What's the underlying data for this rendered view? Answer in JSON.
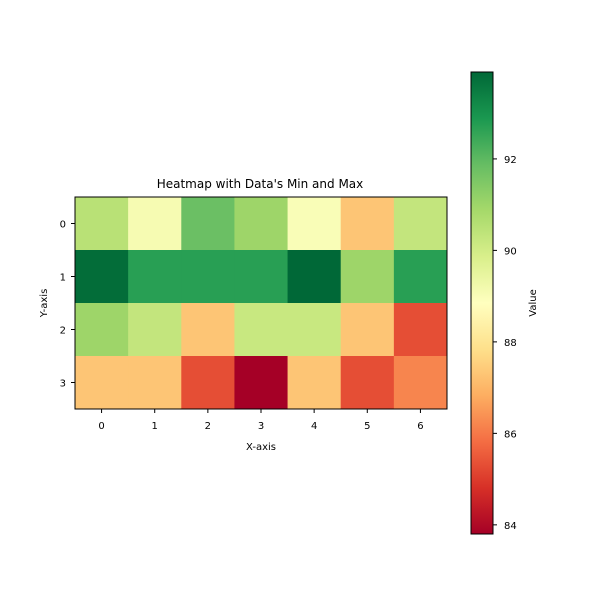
{
  "chart_data": {
    "type": "heatmap",
    "title": "Heatmap with Data's Min and Max",
    "xlabel": "X-axis",
    "ylabel": "Y-axis",
    "x_categories": [
      "0",
      "1",
      "2",
      "3",
      "4",
      "5",
      "6"
    ],
    "y_categories": [
      "0",
      "1",
      "2",
      "3"
    ],
    "values": [
      [
        90.5,
        89.1,
        91.8,
        91.0,
        89.0,
        87.3,
        90.3
      ],
      [
        93.8,
        92.7,
        92.7,
        92.7,
        93.9,
        91.0,
        92.7
      ],
      [
        91.0,
        90.3,
        87.3,
        90.2,
        90.2,
        87.3,
        85.3
      ],
      [
        87.3,
        87.3,
        85.3,
        83.8,
        87.3,
        85.3,
        86.2
      ]
    ],
    "vmin": 83.8,
    "vmax": 93.9,
    "colormap": "RdYlGn",
    "colorbar": {
      "label": "Value",
      "ticks": [
        84,
        86,
        88,
        90,
        92
      ]
    },
    "grid": false
  }
}
